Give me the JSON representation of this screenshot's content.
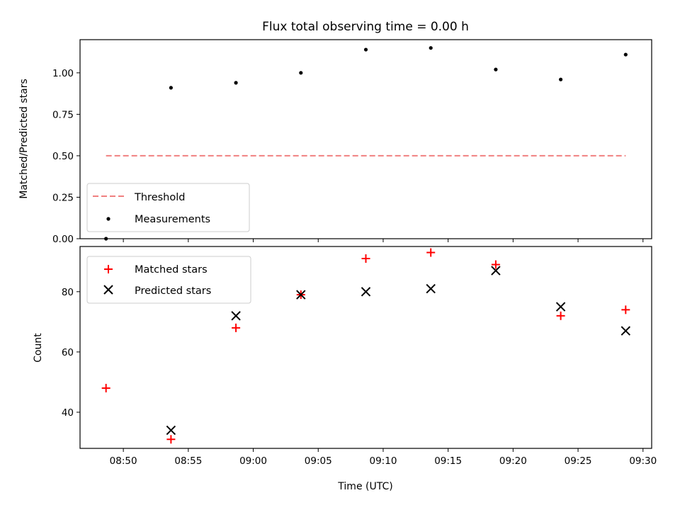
{
  "chart_data": {
    "title": "Flux total observing time = 0.00 h",
    "xlabel": "Time (UTC)",
    "x_ticks": [
      "08:50",
      "08:55",
      "09:00",
      "09:05",
      "09:10",
      "09:15",
      "09:20",
      "09:25",
      "09:30"
    ],
    "times": [
      "08:48:40",
      "08:53:40",
      "08:58:40",
      "09:03:40",
      "09:08:40",
      "09:13:40",
      "09:18:40",
      "09:23:40",
      "09:28:40"
    ],
    "xlim": [
      "08:46:40",
      "09:30:40"
    ],
    "panels": [
      {
        "type": "scatter",
        "ylabel": "Matched/Predicted stars",
        "ylim": [
          0,
          1.2
        ],
        "y_ticks": [
          "0.00",
          "0.25",
          "0.50",
          "0.75",
          "1.00"
        ],
        "legend_position": "lower-left",
        "series": [
          {
            "name": "Threshold",
            "kind": "dashed-line",
            "color": "#f08080",
            "values": [
              0.5,
              0.5,
              0.5,
              0.5,
              0.5,
              0.5,
              0.5,
              0.5,
              0.5
            ]
          },
          {
            "name": "Measurements",
            "kind": "dot",
            "color": "#000000",
            "values": [
              0.0,
              0.91,
              0.94,
              1.0,
              1.14,
              1.15,
              1.02,
              0.96,
              1.11
            ]
          }
        ]
      },
      {
        "type": "scatter",
        "ylabel": "Count",
        "ylim": [
          28,
          95
        ],
        "y_ticks": [
          "40",
          "60",
          "80"
        ],
        "legend_position": "top-left",
        "series": [
          {
            "name": "Matched stars",
            "kind": "plus",
            "color": "#ff0000",
            "values": [
              48,
              31,
              68,
              79,
              91,
              93,
              89,
              72,
              74
            ]
          },
          {
            "name": "Predicted stars",
            "kind": "cross",
            "color": "#000000",
            "values": [
              null,
              34,
              72,
              79,
              80,
              81,
              87,
              75,
              67
            ]
          }
        ]
      }
    ]
  }
}
